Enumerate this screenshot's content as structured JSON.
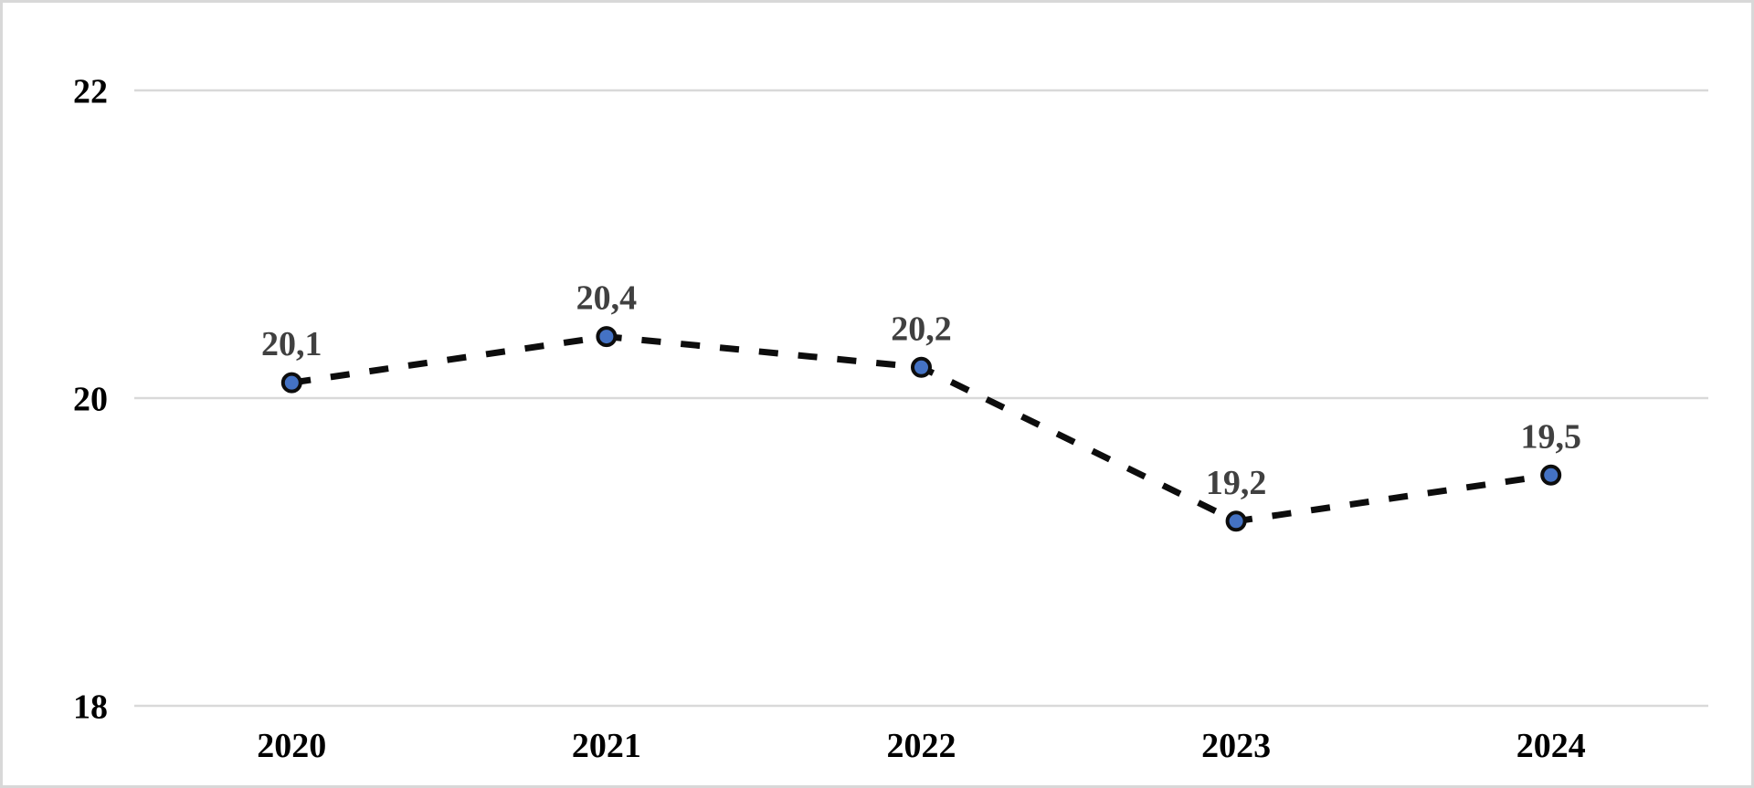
{
  "chart_data": {
    "type": "line",
    "categories": [
      "2020",
      "2021",
      "2022",
      "2023",
      "2024"
    ],
    "values": [
      20.1,
      20.4,
      20.2,
      19.2,
      19.5
    ],
    "point_labels": [
      "20,1",
      "20,4",
      "20,2",
      "19,2",
      "19,5"
    ],
    "series_name": "",
    "title": "",
    "xlabel": "",
    "ylabel": "",
    "ylim": [
      18,
      22
    ],
    "yticks": [
      18,
      20,
      22
    ],
    "ytick_labels": [
      "18",
      "20",
      "22"
    ],
    "grid": true,
    "legend": false,
    "legend_position": "none",
    "line_style": "dashed",
    "colors": {
      "line": "#0d0d0d",
      "marker_fill": "#4472c4",
      "marker_stroke": "#0d0d0d",
      "data_label": "#404040",
      "axis_text": "#000000",
      "gridline": "#d9d9d9",
      "frame_border": "#d8d8d8",
      "background": "#ffffff"
    }
  }
}
